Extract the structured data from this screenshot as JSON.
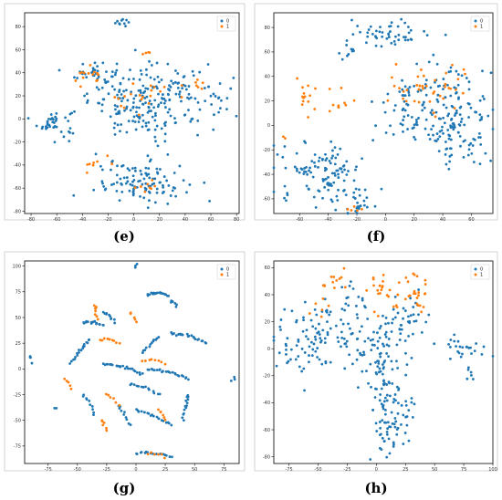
{
  "colors": {
    "class0": "#1f77b4",
    "class1": "#ff7f0e"
  },
  "captions": [
    "(e)",
    "(f)",
    "(g)",
    "(h)"
  ],
  "chart_data": [
    {
      "type": "scatter",
      "panel": "(e)",
      "xlim": [
        -85,
        82
      ],
      "ylim": [
        -82,
        92
      ],
      "xticks": [
        -80,
        -60,
        -40,
        -20,
        0,
        20,
        40,
        60,
        80
      ],
      "yticks": [
        -80,
        -60,
        -40,
        -20,
        0,
        20,
        40,
        60,
        80
      ],
      "legend": {
        "position": "top-right",
        "entries": [
          "0",
          "1"
        ]
      },
      "series": [
        {
          "name": "0",
          "color": "#1f77b4",
          "clusters": [
            {
              "cx": -8,
              "cy": 84,
              "sx": 3,
              "sy": 3,
              "n": 10
            },
            {
              "cx": -62,
              "cy": -3,
              "sx": 8,
              "sy": 6,
              "n": 40
            },
            {
              "cx": -30,
              "cy": 40,
              "sx": 8,
              "sy": 6,
              "n": 35
            },
            {
              "cx": 15,
              "cy": 15,
              "sx": 25,
              "sy": 15,
              "n": 220
            },
            {
              "cx": 5,
              "cy": -55,
              "sx": 18,
              "sy": 9,
              "n": 110
            },
            {
              "cx": 70,
              "cy": 25,
              "sx": 6,
              "sy": 6,
              "n": 8
            }
          ]
        },
        {
          "name": "1",
          "color": "#ff7f0e",
          "clusters": [
            {
              "cx": -35,
              "cy": 37,
              "sx": 6,
              "sy": 4,
              "n": 14
            },
            {
              "cx": 5,
              "cy": 20,
              "sx": 12,
              "sy": 8,
              "n": 20
            },
            {
              "cx": 10,
              "cy": 58,
              "sx": 3,
              "sy": 2,
              "n": 4
            },
            {
              "cx": -32,
              "cy": -40,
              "sx": 6,
              "sy": 6,
              "n": 8
            },
            {
              "cx": 10,
              "cy": -58,
              "sx": 8,
              "sy": 4,
              "n": 8
            },
            {
              "cx": 50,
              "cy": 28,
              "sx": 8,
              "sy": 4,
              "n": 6
            }
          ]
        }
      ]
    },
    {
      "type": "scatter",
      "panel": "(f)",
      "xlim": [
        -78,
        75
      ],
      "ylim": [
        -72,
        92
      ],
      "xticks": [
        -60,
        -40,
        -20,
        0,
        20,
        40,
        60
      ],
      "yticks": [
        -60,
        -40,
        -20,
        0,
        20,
        40,
        60,
        80
      ],
      "legend": {
        "position": "top-right",
        "entries": [
          "0",
          "1"
        ]
      },
      "series": [
        {
          "name": "0",
          "color": "#1f77b4",
          "clusters": [
            {
              "cx": 3,
              "cy": 75,
              "sx": 14,
              "sy": 5,
              "n": 50
            },
            {
              "cx": -25,
              "cy": 58,
              "sx": 3,
              "sy": 3,
              "n": 8
            },
            {
              "cx": -45,
              "cy": -38,
              "sx": 15,
              "sy": 12,
              "n": 110
            },
            {
              "cx": -18,
              "cy": -62,
              "sx": 5,
              "sy": 6,
              "n": 25
            },
            {
              "cx": 30,
              "cy": 15,
              "sx": 20,
              "sy": 18,
              "n": 150
            },
            {
              "cx": 50,
              "cy": -10,
              "sx": 12,
              "sy": 12,
              "n": 60
            }
          ]
        },
        {
          "name": "1",
          "color": "#ff7f0e",
          "clusters": [
            {
              "cx": -55,
              "cy": 25,
              "sx": 5,
              "sy": 8,
              "n": 14
            },
            {
              "cx": -30,
              "cy": 20,
              "sx": 6,
              "sy": 6,
              "n": 10
            },
            {
              "cx": 30,
              "cy": 28,
              "sx": 16,
              "sy": 10,
              "n": 40
            },
            {
              "cx": -20,
              "cy": -68,
              "sx": 4,
              "sy": 2,
              "n": 5
            },
            {
              "cx": -70,
              "cy": -10,
              "sx": 1.5,
              "sy": 1.5,
              "n": 2
            }
          ]
        }
      ]
    },
    {
      "type": "scatter",
      "panel": "(g)",
      "xlim": [
        -95,
        88
      ],
      "ylim": [
        -92,
        105
      ],
      "xticks": [
        -75,
        -50,
        -25,
        0,
        25,
        50,
        75
      ],
      "yticks": [
        -75,
        -50,
        -25,
        0,
        25,
        50,
        75,
        100
      ],
      "legend": {
        "position": "top-right",
        "entries": [
          "0",
          "1"
        ]
      },
      "series": [
        {
          "name": "0",
          "color": "#1f77b4",
          "segments": [
            {
              "x1": 10,
              "y1": 72,
              "x2": 28,
              "y2": 72,
              "n": 22
            },
            {
              "x1": -45,
              "y1": 45,
              "x2": -28,
              "y2": 42,
              "n": 16
            },
            {
              "x1": -40,
              "y1": 28,
              "x2": -55,
              "y2": 5,
              "n": 18
            },
            {
              "x1": -28,
              "y1": 55,
              "x2": -18,
              "y2": 45,
              "n": 10
            },
            {
              "x1": 30,
              "y1": 65,
              "x2": 35,
              "y2": 60,
              "n": 6
            },
            {
              "x1": 20,
              "y1": 30,
              "x2": 5,
              "y2": 15,
              "n": 12
            },
            {
              "x1": 30,
              "y1": 35,
              "x2": 60,
              "y2": 25,
              "n": 22
            },
            {
              "x1": -28,
              "y1": 5,
              "x2": 5,
              "y2": -5,
              "n": 24
            },
            {
              "x1": 10,
              "y1": 0,
              "x2": 45,
              "y2": -10,
              "n": 24
            },
            {
              "x1": -5,
              "y1": -15,
              "x2": 20,
              "y2": -25,
              "n": 14
            },
            {
              "x1": 45,
              "y1": -25,
              "x2": 40,
              "y2": -50,
              "n": 14
            },
            {
              "x1": 0,
              "y1": -40,
              "x2": 30,
              "y2": -55,
              "n": 20
            },
            {
              "x1": -45,
              "y1": -25,
              "x2": -35,
              "y2": -45,
              "n": 10
            },
            {
              "x1": -15,
              "y1": -35,
              "x2": -5,
              "y2": -55,
              "n": 10
            },
            {
              "x1": 0,
              "y1": -82,
              "x2": 30,
              "y2": -86,
              "n": 18
            },
            {
              "x1": -90,
              "y1": 12,
              "x2": -90,
              "y2": 5,
              "n": 4
            },
            {
              "x1": 82,
              "y1": -10,
              "x2": 84,
              "y2": -10,
              "n": 3
            },
            {
              "x1": -70,
              "y1": -38,
              "x2": -68,
              "y2": -38,
              "n": 2
            },
            {
              "x1": 0,
              "y1": 98,
              "x2": 1,
              "y2": 100,
              "n": 3
            }
          ]
        },
        {
          "name": "1",
          "color": "#ff7f0e",
          "segments": [
            {
              "x1": -35,
              "y1": 62,
              "x2": -33,
              "y2": 48,
              "n": 8
            },
            {
              "x1": -30,
              "y1": 28,
              "x2": -15,
              "y2": 25,
              "n": 9
            },
            {
              "x1": -5,
              "y1": 55,
              "x2": 0,
              "y2": 45,
              "n": 6
            },
            {
              "x1": 5,
              "y1": 8,
              "x2": 25,
              "y2": 5,
              "n": 8
            },
            {
              "x1": -60,
              "y1": -10,
              "x2": -55,
              "y2": -20,
              "n": 5
            },
            {
              "x1": -25,
              "y1": -25,
              "x2": -15,
              "y2": -35,
              "n": 6
            },
            {
              "x1": -30,
              "y1": -50,
              "x2": -25,
              "y2": -60,
              "n": 6
            },
            {
              "x1": 20,
              "y1": -40,
              "x2": 25,
              "y2": -50,
              "n": 6
            },
            {
              "x1": 10,
              "y1": -83,
              "x2": 25,
              "y2": -86,
              "n": 6
            }
          ]
        }
      ]
    },
    {
      "type": "scatter",
      "panel": "(h)",
      "xlim": [
        -88,
        100
      ],
      "ylim": [
        -85,
        65
      ],
      "xticks": [
        -75,
        -50,
        -25,
        0,
        25,
        50,
        75,
        100
      ],
      "yticks": [
        -80,
        -60,
        -40,
        -20,
        0,
        20,
        40,
        60
      ],
      "legend": {
        "position": "top-right",
        "entries": [
          "0",
          "1"
        ]
      },
      "series": [
        {
          "name": "0",
          "color": "#1f77b4",
          "clusters": [
            {
              "cx": -60,
              "cy": 5,
              "sx": 14,
              "sy": 14,
              "n": 70
            },
            {
              "cx": -25,
              "cy": 15,
              "sx": 14,
              "sy": 18,
              "n": 60
            },
            {
              "cx": 5,
              "cy": -5,
              "sx": 12,
              "sy": 16,
              "n": 60
            },
            {
              "cx": 12,
              "cy": -45,
              "sx": 10,
              "sy": 18,
              "n": 90
            },
            {
              "cx": 25,
              "cy": 25,
              "sx": 10,
              "sy": 10,
              "n": 40
            },
            {
              "cx": 72,
              "cy": 0,
              "sx": 12,
              "sy": 5,
              "n": 25
            },
            {
              "cx": 80,
              "cy": -20,
              "sx": 2,
              "sy": 3,
              "n": 6
            }
          ]
        },
        {
          "name": "1",
          "color": "#ff7f0e",
          "clusters": [
            {
              "cx": -38,
              "cy": 48,
              "sx": 5,
              "sy": 5,
              "n": 12
            },
            {
              "cx": 10,
              "cy": 42,
              "sx": 10,
              "sy": 8,
              "n": 25
            },
            {
              "cx": 30,
              "cy": 40,
              "sx": 6,
              "sy": 10,
              "n": 22
            },
            {
              "cx": -50,
              "cy": 30,
              "sx": 6,
              "sy": 5,
              "n": 6
            }
          ]
        }
      ]
    }
  ]
}
